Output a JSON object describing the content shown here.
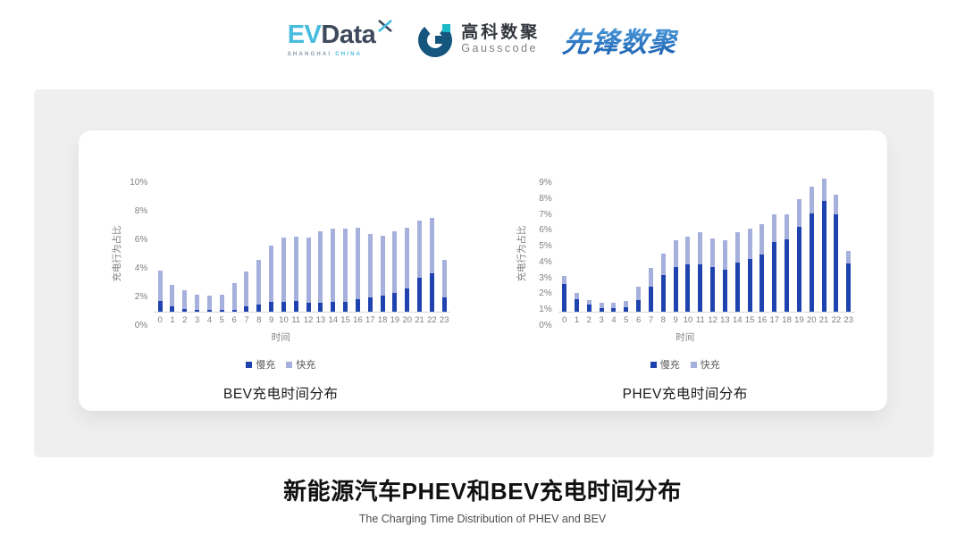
{
  "header": {
    "evdata": {
      "ev": "EV",
      "data": "Data",
      "sub_left": "SHANGHAI",
      "sub_right": "CHINA"
    },
    "gausscode": {
      "name_cn": "高科数聚",
      "name_en": "Gausscode"
    },
    "xianfeng": {
      "name": "先锋数聚"
    }
  },
  "colors": {
    "slow_charge": "#1E43AE",
    "fast_charge": "#A6B0DD",
    "panel_bg": "#EFEFEF",
    "axis_text": "#7F7F7F",
    "evdata_cyan": "#47BCDF",
    "evdata_dark": "#3E4A5B",
    "gauss_blue": "#15567F",
    "gauss_teal": "#1BB9C6",
    "xianfeng_blue": "#2878C8"
  },
  "footer": {
    "title": "新能源汽车PHEV和BEV充电时间分布",
    "subtitle": "The Charging Time Distribution of PHEV and BEV"
  },
  "chart_data": [
    {
      "type": "bar",
      "stacked": true,
      "title": "BEV充电时间分布",
      "xlabel": "时间",
      "ylabel": "充电行为占比",
      "ylim": [
        0,
        10
      ],
      "ytick_step": 2,
      "ytick_suffix": "%",
      "grid": false,
      "legend_position": "bottom",
      "categories": [
        0,
        1,
        2,
        3,
        4,
        5,
        6,
        7,
        8,
        9,
        10,
        11,
        12,
        13,
        14,
        15,
        16,
        17,
        18,
        19,
        20,
        21,
        22,
        23
      ],
      "series": [
        {
          "name": "慢充",
          "color": "#1E43AE",
          "values": [
            0.75,
            0.4,
            0.2,
            0.1,
            0.1,
            0.1,
            0.15,
            0.35,
            0.5,
            0.7,
            0.7,
            0.75,
            0.6,
            0.65,
            0.7,
            0.7,
            0.85,
            1.0,
            1.1,
            1.3,
            1.6,
            2.35,
            2.7,
            1.0
          ]
        },
        {
          "name": "快充",
          "color": "#A6B0DD",
          "values": [
            2.15,
            1.5,
            1.3,
            1.1,
            1.0,
            1.1,
            1.85,
            2.45,
            3.1,
            3.9,
            4.5,
            4.5,
            4.6,
            5.0,
            5.1,
            5.1,
            5.0,
            4.45,
            4.2,
            4.3,
            4.3,
            4.0,
            3.85,
            2.6
          ]
        }
      ]
    },
    {
      "type": "bar",
      "stacked": true,
      "title": "PHEV充电时间分布",
      "xlabel": "时间",
      "ylabel": "充电行为占比",
      "ylim": [
        0,
        9
      ],
      "ytick_step": 1,
      "ytick_suffix": "%",
      "grid": false,
      "legend_position": "bottom",
      "categories": [
        0,
        1,
        2,
        3,
        4,
        5,
        6,
        7,
        8,
        9,
        10,
        11,
        12,
        13,
        14,
        15,
        16,
        17,
        18,
        19,
        20,
        21,
        22,
        23
      ],
      "series": [
        {
          "name": "慢充",
          "color": "#1E43AE",
          "values": [
            1.75,
            0.8,
            0.45,
            0.25,
            0.25,
            0.3,
            0.75,
            1.6,
            2.3,
            2.8,
            3.0,
            3.0,
            2.8,
            2.65,
            3.1,
            3.3,
            3.6,
            4.4,
            4.55,
            5.35,
            6.2,
            7.0,
            6.15,
            3.05
          ]
        },
        {
          "name": "快充",
          "color": "#A6B0DD",
          "values": [
            0.5,
            0.4,
            0.3,
            0.3,
            0.3,
            0.4,
            0.85,
            1.15,
            1.35,
            1.7,
            1.75,
            2.0,
            1.8,
            1.85,
            1.9,
            1.95,
            1.9,
            1.75,
            1.6,
            1.75,
            1.7,
            1.4,
            1.2,
            0.75
          ]
        }
      ]
    }
  ]
}
